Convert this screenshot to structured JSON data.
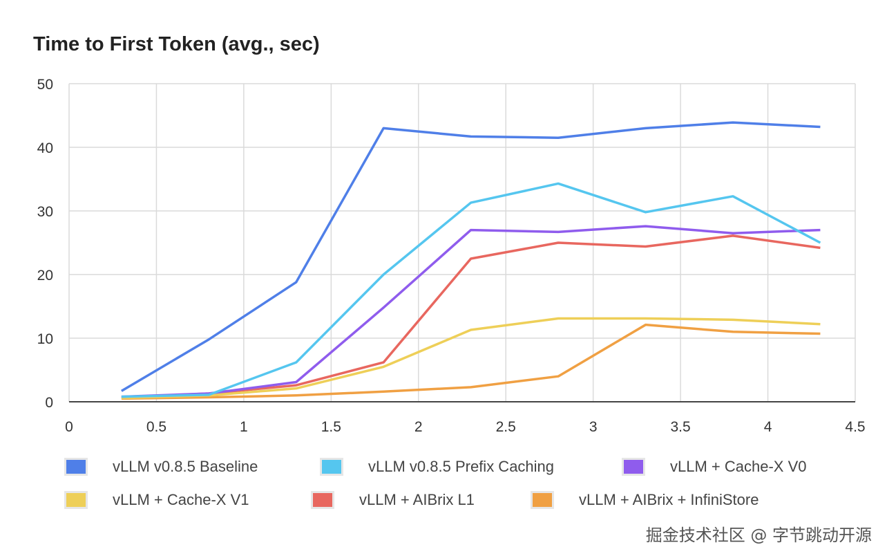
{
  "chart_data": {
    "type": "line",
    "title": "Time to First Token (avg., sec)",
    "xlabel": "",
    "ylabel": "",
    "xlim": [
      0,
      4.5
    ],
    "ylim": [
      0,
      50
    ],
    "xticks": [
      "0",
      "0.5",
      "1",
      "1.5",
      "2",
      "2.5",
      "3",
      "3.5",
      "4",
      "4.5"
    ],
    "yticks": [
      "0",
      "10",
      "20",
      "30",
      "40",
      "50"
    ],
    "grid": true,
    "legend_position": "bottom",
    "x": [
      0.3,
      0.8,
      1.3,
      1.8,
      2.3,
      2.8,
      3.3,
      3.8,
      4.3
    ],
    "series": [
      {
        "name": "vLLM v0.8.5 Baseline",
        "color": "#4f7fe8",
        "values": [
          1.7,
          9.8,
          18.8,
          43.0,
          41.7,
          41.5,
          43.0,
          43.9,
          43.2
        ]
      },
      {
        "name": "vLLM v0.8.5 Prefix Caching",
        "color": "#55c6ef",
        "values": [
          0.8,
          1.1,
          6.2,
          20.0,
          31.3,
          34.3,
          29.8,
          32.3,
          25.0
        ]
      },
      {
        "name": "vLLM + Cache-X V0",
        "color": "#8f5ced",
        "values": [
          0.8,
          1.3,
          3.1,
          14.8,
          27.0,
          26.7,
          27.6,
          26.5,
          27.0
        ]
      },
      {
        "name": "vLLM + Cache-X V1",
        "color": "#eecf58",
        "values": [
          0.6,
          1.0,
          2.1,
          5.5,
          11.3,
          13.1,
          13.1,
          12.9,
          12.2
        ]
      },
      {
        "name": "vLLM + AIBrix L1",
        "color": "#e8675f",
        "values": [
          0.7,
          1.3,
          2.6,
          6.2,
          22.5,
          25.0,
          24.4,
          26.1,
          24.2
        ]
      },
      {
        "name": "vLLM + AIBrix + InfiniStore",
        "color": "#f0a043",
        "values": [
          0.5,
          0.7,
          1.0,
          1.6,
          2.3,
          4.0,
          12.1,
          11.0,
          10.7
        ]
      }
    ]
  },
  "watermark": "掘金技术社区 @ 字节跳动开源"
}
